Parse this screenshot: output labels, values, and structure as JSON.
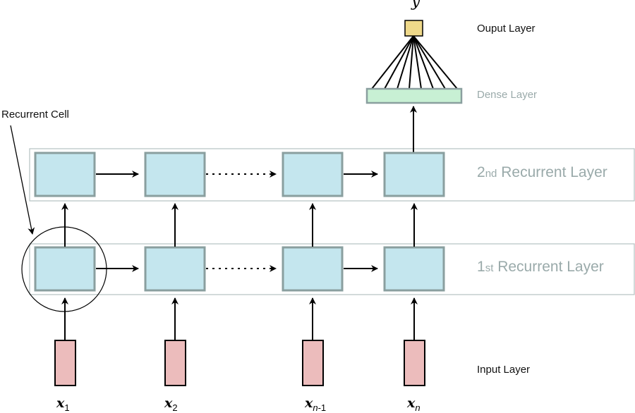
{
  "output_symbol": "y",
  "labels": {
    "output_layer": "Ouput Layer",
    "dense_layer": "Dense Layer",
    "recurrent_cell": "Recurrent Cell",
    "layer2_ordinal": "2",
    "layer2_suffix": "nd",
    "layer2_text": "Recurrent Layer",
    "layer1_ordinal": "1",
    "layer1_suffix": "st",
    "layer1_text": "Recurrent Layer",
    "input_layer": "Input Layer"
  },
  "inputs": [
    {
      "symbol": "x",
      "sub": "1"
    },
    {
      "symbol": "x",
      "sub": "2"
    },
    {
      "symbol": "x",
      "sub_italic": "n",
      "sub_rest": "-1"
    },
    {
      "symbol": "x",
      "sub_italic": "n",
      "sub_rest": ""
    }
  ],
  "colors": {
    "cell_fill": "#c4e6ee",
    "cell_stroke": "#8a9f9f",
    "input_fill": "#ecbcbc",
    "dense_fill": "#c8f0d4",
    "output_fill": "#efd98a",
    "label_gray": "#9aaaaa"
  }
}
